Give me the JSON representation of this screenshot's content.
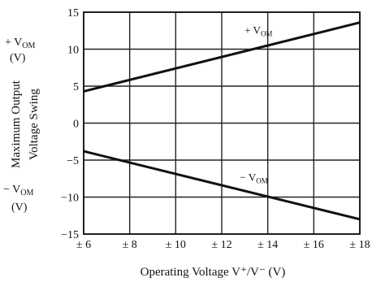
{
  "chart_data": {
    "type": "line",
    "title": "",
    "xlabel": "Operating Voltage  V⁺/V⁻ (V)",
    "ylabel": "Maximum Output Voltage Swing",
    "ylabel_line1": "Maximum Output",
    "ylabel_line2": "Voltage Swing",
    "ylabel_pos": [
      "+ V",
      "OM",
      "(V)"
    ],
    "ylabel_neg": [
      "− V",
      "OM",
      "(V)"
    ],
    "xlim": [
      6,
      18
    ],
    "ylim": [
      -15,
      15
    ],
    "x_ticks": [
      6,
      8,
      10,
      12,
      14,
      16,
      18
    ],
    "x_tick_labels": [
      "± 6",
      "± 8",
      "± 10",
      "± 12",
      "± 14",
      "± 16",
      "± 18"
    ],
    "y_ticks": [
      15,
      10,
      5,
      0,
      -5,
      -10,
      -15
    ],
    "y_tick_labels": [
      "15",
      "10",
      "5",
      "0",
      "−5",
      "−10",
      "−15"
    ],
    "grid": true,
    "series": [
      {
        "name": "+ V",
        "sub": "OM",
        "x": [
          6,
          18
        ],
        "y": [
          4.3,
          13.6
        ],
        "label_at": [
          13.6,
          12.1
        ]
      },
      {
        "name": "− V",
        "sub": "OM",
        "x": [
          6,
          18
        ],
        "y": [
          -3.8,
          -13.0
        ],
        "label_at": [
          13.4,
          -7.8
        ]
      }
    ]
  }
}
